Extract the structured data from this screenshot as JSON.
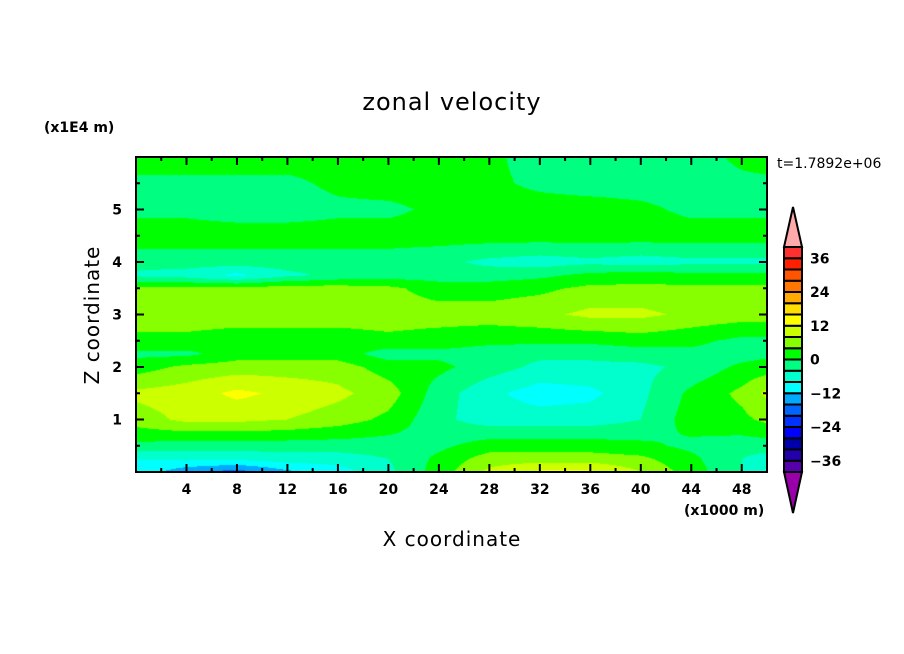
{
  "chart_data": {
    "type": "heatmap",
    "title": "zonal velocity",
    "xlabel": "X coordinate",
    "ylabel": "Z coordinate",
    "x_unit": "(x1000 m)",
    "y_unit": "(x1E4 m)",
    "time_label": "t=1.7892e+06",
    "xlim": [
      0,
      50
    ],
    "ylim": [
      0,
      6
    ],
    "x_ticks": [
      4,
      8,
      12,
      16,
      20,
      24,
      28,
      32,
      36,
      40,
      44,
      48
    ],
    "x_tick_labels": [
      "4",
      "8",
      "12",
      "16",
      "20",
      "24",
      "28",
      "32",
      "36",
      "40",
      "44",
      "48"
    ],
    "y_ticks": [
      1,
      2,
      3,
      4,
      5
    ],
    "y_tick_labels": [
      "1",
      "2",
      "3",
      "4",
      "5"
    ],
    "grid_x": [
      0,
      4,
      8,
      12,
      16,
      20,
      24,
      28,
      32,
      36,
      40,
      44,
      48,
      50
    ],
    "grid_z": [
      6.0,
      5.5,
      5.0,
      4.5,
      4.0,
      3.75,
      3.5,
      3.0,
      2.5,
      2.25,
      2.0,
      1.5,
      1.0,
      0.5,
      0.25,
      0.0
    ],
    "values": [
      [
        2,
        2,
        2,
        2,
        2,
        2,
        2,
        1,
        -2,
        -2,
        -2,
        -2,
        1,
        2
      ],
      [
        -1,
        -1,
        -1,
        -1,
        1,
        2,
        2,
        1,
        -1,
        -2,
        -2,
        -2,
        -1,
        -1
      ],
      [
        -1,
        -1,
        -2,
        -2,
        -1,
        -1,
        1,
        2,
        2,
        2,
        1,
        -1,
        -1,
        -1
      ],
      [
        2,
        2,
        2,
        2,
        2,
        2,
        2,
        2,
        2,
        2,
        2,
        2,
        2,
        2
      ],
      [
        -2,
        -2,
        -2,
        -2,
        -2,
        -2,
        -3,
        -5,
        -6,
        -5,
        -6,
        -5,
        -5,
        -5
      ],
      [
        -5,
        -6,
        -9,
        -5,
        -3,
        -2,
        -2,
        -2,
        -1,
        1,
        2,
        1,
        1,
        1
      ],
      [
        5,
        5,
        5,
        6,
        6,
        5,
        2,
        2,
        3,
        5,
        5,
        5,
        5,
        5
      ],
      [
        6,
        6,
        6,
        6,
        6,
        6,
        6,
        6,
        7,
        9,
        9,
        7,
        6,
        6
      ],
      [
        3,
        3,
        2,
        2,
        2,
        3,
        2,
        1,
        1,
        1,
        2,
        1,
        -1,
        -1
      ],
      [
        -1,
        -1,
        2,
        2,
        2,
        -2,
        -1,
        -2,
        -3,
        -3,
        -2,
        -1,
        -2,
        -1
      ],
      [
        2,
        5,
        6,
        6,
        6,
        2,
        1,
        -2,
        -5,
        -5,
        -5,
        -3,
        1,
        2
      ],
      [
        9,
        10,
        13,
        11,
        9,
        6,
        -2,
        -7,
        -10,
        -9,
        -5,
        1,
        5,
        9
      ],
      [
        6,
        9,
        9,
        8,
        6,
        3,
        -3,
        -6,
        -6,
        -6,
        -4,
        2,
        3,
        5
      ],
      [
        -1,
        -2,
        -2,
        -2,
        -2,
        -2,
        -1,
        2,
        2,
        2,
        1,
        -1,
        -2,
        -2
      ],
      [
        -8,
        -7,
        -7,
        -6,
        -6,
        -4,
        1,
        6,
        6,
        6,
        5,
        1,
        -4,
        -6
      ],
      [
        -9,
        -15,
        -18,
        -13,
        -10,
        -5,
        2,
        9,
        13,
        13,
        8,
        2,
        -4,
        -9
      ]
    ],
    "colorbar": {
      "levels": [
        -40,
        -36,
        -32,
        -28,
        -24,
        -20,
        -16,
        -12,
        -8,
        -4,
        0,
        4,
        8,
        12,
        16,
        20,
        24,
        28,
        32,
        36,
        40
      ],
      "labels": [
        "36",
        "24",
        "12",
        "0",
        "-12",
        "-24",
        "-36"
      ],
      "label_values": [
        36,
        24,
        12,
        0,
        -12,
        -24,
        -36
      ],
      "colors": [
        "#5500aa",
        "#2200aa",
        "#0000aa",
        "#0000ff",
        "#0033ff",
        "#0066ff",
        "#00aaff",
        "#00ffff",
        "#00ffcc",
        "#00ff80",
        "#00ff00",
        "#88ff00",
        "#ccff00",
        "#ffff00",
        "#ffdd00",
        "#ffaa00",
        "#ff7700",
        "#ff5500",
        "#ff2000",
        "#ff3030"
      ],
      "under_color": "#9900aa",
      "over_color": "#ffaaaa"
    }
  }
}
